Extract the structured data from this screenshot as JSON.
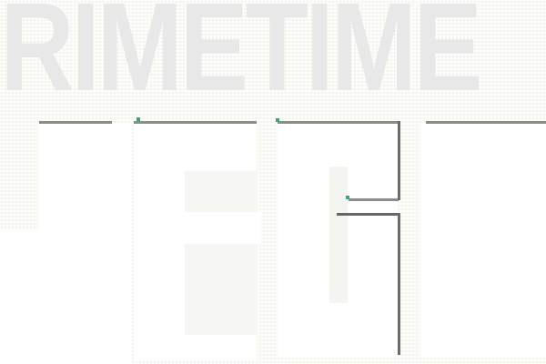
{
  "logo": {
    "top_text": "RIMETIME",
    "bottom_text": "MEG",
    "colors": {
      "background": "#fcfcf9",
      "top_text": "#e8e8e8",
      "letters": "#ffffff",
      "outline": "#8c8c8c",
      "accent": "#3aa676"
    }
  }
}
